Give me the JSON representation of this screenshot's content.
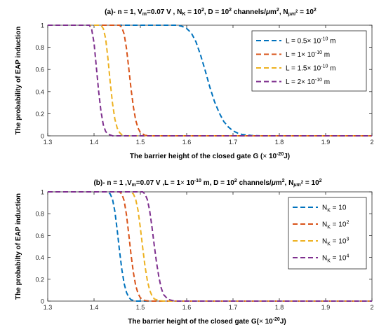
{
  "figure": {
    "panel_a": {
      "title_parts": [
        "(a)- n = 1, V",
        "m",
        "=0.07 V , N",
        "K",
        " = 10",
        "2",
        ", D = 10",
        "2",
        " channels/",
        "μ",
        "m",
        "2",
        ", N",
        "μm",
        "2",
        " = 10",
        "2"
      ],
      "ylabel": "The probability of EAP induction",
      "xlabel_parts": [
        "The barrier height of the closed gate G (",
        "×",
        " 10",
        "-20",
        "J)"
      ],
      "legend_labels": [
        [
          "L = 0.5",
          "×",
          " 10",
          "-10",
          " m"
        ],
        [
          "L = 1",
          "×",
          " 10",
          "-10",
          " m"
        ],
        [
          "L = 1.5",
          "×",
          " 10",
          "-10",
          " m"
        ],
        [
          "L = 2",
          "×",
          " 10",
          "-10",
          " m"
        ]
      ]
    },
    "panel_b": {
      "title_parts": [
        "(b)- n = 1 ,V",
        "m",
        "=0.07 V ,L = 1",
        "×",
        " 10",
        "-10",
        " m, D = 10",
        "2",
        " channels/",
        "μ",
        "m",
        "2",
        ", N",
        "μm",
        "2",
        " = 10",
        "2"
      ],
      "ylabel": "The probabilty of EAP induction",
      "xlabel_parts": [
        "The barrier height of the closed gate G(",
        "×",
        " 10",
        "-20",
        "J)"
      ],
      "legend_labels": [
        [
          "N",
          "K",
          " = 10",
          ""
        ],
        [
          "N",
          "K",
          " = 10",
          "2"
        ],
        [
          "N",
          "K",
          " = 10",
          "3"
        ],
        [
          "N",
          "K",
          " = 10",
          "4"
        ]
      ]
    }
  },
  "chart_data": [
    {
      "type": "line",
      "title": "(a)- n = 1, Vm=0.07 V , NK = 10^2, D = 10^2 channels/μm^2, Nμm^2 = 10^2",
      "xlabel": "The barrier height of the closed gate G (× 10^-20J)",
      "ylabel": "The probability of EAP induction",
      "xlim": [
        1.3,
        2
      ],
      "ylim": [
        0,
        1
      ],
      "xticks": [
        "1.3",
        "1.4",
        "1.5",
        "1.6",
        "1.7",
        "1.8",
        "1.9",
        "2"
      ],
      "yticks": [
        "0",
        "0.2",
        "0.4",
        "0.6",
        "0.8",
        "1"
      ],
      "grid": false,
      "legend_position": "top-right",
      "line_style": "dashed",
      "series": [
        {
          "name": "L = 0.5× 10^-10 m",
          "color": "#0072BD",
          "x": [
            1.3,
            1.58,
            1.59,
            1.6,
            1.61,
            1.62,
            1.63,
            1.64,
            1.65,
            1.66,
            1.67,
            1.68,
            1.69,
            1.7,
            1.71,
            1.72,
            1.74,
            1.76,
            2.0
          ],
          "y": [
            1,
            1,
            0.99,
            0.97,
            0.93,
            0.85,
            0.73,
            0.59,
            0.44,
            0.31,
            0.21,
            0.13,
            0.08,
            0.045,
            0.025,
            0.012,
            0.003,
            0,
            0
          ]
        },
        {
          "name": "L = 1× 10^-10 m",
          "color": "#D95319",
          "x": [
            1.3,
            1.455,
            1.46,
            1.465,
            1.47,
            1.475,
            1.48,
            1.485,
            1.49,
            1.495,
            1.5,
            1.51,
            1.52,
            2.0
          ],
          "y": [
            1,
            1,
            0.98,
            0.92,
            0.79,
            0.61,
            0.42,
            0.26,
            0.14,
            0.07,
            0.03,
            0.005,
            0,
            0
          ]
        },
        {
          "name": "L = 1.5× 10^-10 m",
          "color": "#EDB120",
          "x": [
            1.3,
            1.415,
            1.42,
            1.425,
            1.43,
            1.435,
            1.44,
            1.445,
            1.45,
            1.455,
            1.46,
            1.47,
            2.0
          ],
          "y": [
            1,
            1,
            0.97,
            0.88,
            0.7,
            0.48,
            0.29,
            0.15,
            0.07,
            0.03,
            0.01,
            0,
            0
          ]
        },
        {
          "name": "L = 2× 10^-10 m",
          "color": "#7E2F8E",
          "x": [
            1.3,
            1.39,
            1.395,
            1.4,
            1.405,
            1.41,
            1.415,
            1.42,
            1.425,
            1.43,
            1.44,
            2.0
          ],
          "y": [
            1,
            1,
            0.96,
            0.84,
            0.62,
            0.4,
            0.22,
            0.1,
            0.04,
            0.015,
            0,
            0
          ]
        }
      ]
    },
    {
      "type": "line",
      "title": "(b)- n = 1 ,Vm=0.07 V ,L = 1× 10^-10 m, D = 10^2 channels/μm^2, Nμm^2 = 10^2",
      "xlabel": "The barrier height of the closed gate G(× 10^-20J)",
      "ylabel": "The probabilty of EAP induction",
      "xlim": [
        1.3,
        2
      ],
      "ylim": [
        0,
        1
      ],
      "xticks": [
        "1.3",
        "1.4",
        "1.5",
        "1.6",
        "1.7",
        "1.8",
        "1.9",
        "2"
      ],
      "yticks": [
        "0",
        "0.2",
        "0.4",
        "0.6",
        "0.8",
        "1"
      ],
      "grid": false,
      "legend_position": "top-right",
      "line_style": "dashed",
      "series": [
        {
          "name": "NK = 10",
          "color": "#0072BD",
          "x": [
            1.3,
            1.43,
            1.435,
            1.44,
            1.445,
            1.45,
            1.455,
            1.46,
            1.465,
            1.47,
            1.475,
            1.48,
            1.49,
            2.0
          ],
          "y": [
            1,
            1,
            0.98,
            0.93,
            0.82,
            0.65,
            0.46,
            0.29,
            0.16,
            0.08,
            0.035,
            0.012,
            0,
            0
          ]
        },
        {
          "name": "NK = 10^2",
          "color": "#D95319",
          "x": [
            1.3,
            1.455,
            1.46,
            1.465,
            1.47,
            1.475,
            1.48,
            1.485,
            1.49,
            1.495,
            1.5,
            1.51,
            1.52,
            2.0
          ],
          "y": [
            1,
            1,
            0.98,
            0.92,
            0.79,
            0.61,
            0.42,
            0.26,
            0.14,
            0.07,
            0.03,
            0.005,
            0,
            0
          ]
        },
        {
          "name": "NK = 10^3",
          "color": "#EDB120",
          "x": [
            1.3,
            1.48,
            1.485,
            1.49,
            1.495,
            1.5,
            1.505,
            1.51,
            1.515,
            1.52,
            1.525,
            1.53,
            1.54,
            1.55,
            2.0
          ],
          "y": [
            1,
            1,
            0.98,
            0.93,
            0.83,
            0.67,
            0.49,
            0.32,
            0.19,
            0.1,
            0.05,
            0.02,
            0.005,
            0,
            0
          ]
        },
        {
          "name": "NK = 10^4",
          "color": "#7E2F8E",
          "x": [
            1.3,
            1.505,
            1.51,
            1.515,
            1.52,
            1.525,
            1.53,
            1.535,
            1.54,
            1.545,
            1.55,
            1.56,
            1.57,
            1.58,
            2.0
          ],
          "y": [
            1,
            1,
            0.98,
            0.93,
            0.83,
            0.68,
            0.51,
            0.35,
            0.22,
            0.12,
            0.06,
            0.015,
            0.004,
            0,
            0
          ]
        }
      ]
    }
  ]
}
